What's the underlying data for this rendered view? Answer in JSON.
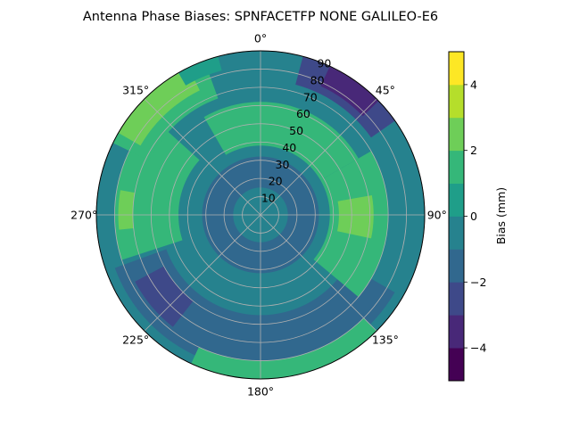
{
  "chart_data": {
    "type": "heatmap",
    "subtype": "polar-contourf",
    "title": "Antenna Phase Biases: SPNFACETFP      NONE GALILEO-E6",
    "angular_tick_labels": [
      "0°",
      "45°",
      "90°",
      "135°",
      "180°",
      "225°",
      "270°",
      "315°"
    ],
    "angular_tick_values": [
      0,
      45,
      90,
      135,
      180,
      225,
      270,
      315
    ],
    "radial_tick_labels": [
      "10",
      "20",
      "30",
      "40",
      "50",
      "60",
      "70",
      "80",
      "90"
    ],
    "radial_tick_values": [
      10,
      20,
      30,
      40,
      50,
      60,
      70,
      80,
      90
    ],
    "radial_range": [
      0,
      90
    ],
    "grid": true,
    "colormap": "viridis",
    "colorbar": {
      "label": "Bias (mm)",
      "range": [
        -5,
        5
      ],
      "levels": [
        -5,
        -4,
        -3,
        -2,
        -1,
        0,
        1,
        2,
        3,
        4,
        5
      ],
      "tick_values": [
        -4,
        -2,
        0,
        2,
        4
      ],
      "tick_labels": [
        "−4",
        "−2",
        "0",
        "2",
        "4"
      ],
      "colors": [
        "#440154",
        "#482878",
        "#3e4989",
        "#31688e",
        "#26828e",
        "#1f9e89",
        "#35b779",
        "#6ece58",
        "#b5de2b",
        "#fde725"
      ]
    },
    "regions": [
      {
        "azimuth": [
          0,
          360
        ],
        "zenith": [
          0,
          90
        ],
        "bias": -0.5
      },
      {
        "azimuth": [
          0,
          360
        ],
        "zenith": [
          15,
          32
        ],
        "bias": -1.5
      },
      {
        "azimuth": [
          120,
          250
        ],
        "zenith": [
          55,
          85
        ],
        "bias": -1.5
      },
      {
        "azimuth": [
          330,
          420
        ],
        "zenith": [
          38,
          62
        ],
        "bias": 1.5
      },
      {
        "azimuth": [
          60,
          130
        ],
        "zenith": [
          38,
          70
        ],
        "bias": 1.5
      },
      {
        "azimuth": [
          252,
          312
        ],
        "zenith": [
          45,
          80
        ],
        "bias": 1.5
      },
      {
        "azimuth": [
          135,
          205
        ],
        "zenith": [
          80,
          90
        ],
        "bias": 1.5
      },
      {
        "azimuth": [
          296,
          340
        ],
        "zenith": [
          68,
          90
        ],
        "bias": 1.5
      },
      {
        "azimuth": [
          80,
          102
        ],
        "zenith": [
          43,
          62
        ],
        "bias": 2.5
      },
      {
        "azimuth": [
          300,
          334
        ],
        "zenith": [
          76,
          90
        ],
        "bias": 2.5
      },
      {
        "azimuth": [
          264,
          280
        ],
        "zenith": [
          70,
          78
        ],
        "bias": 2.5
      },
      {
        "azimuth": [
          15,
          55
        ],
        "zenith": [
          74,
          90
        ],
        "bias": -2.5
      },
      {
        "azimuth": [
          25,
          46
        ],
        "zenith": [
          78,
          90
        ],
        "bias": -3.5
      },
      {
        "azimuth": [
          330,
          345
        ],
        "zenith": [
          82,
          90
        ],
        "bias": 0.5
      },
      {
        "azimuth": [
          218,
          242
        ],
        "zenith": [
          60,
          78
        ],
        "bias": -2.5
      }
    ]
  }
}
